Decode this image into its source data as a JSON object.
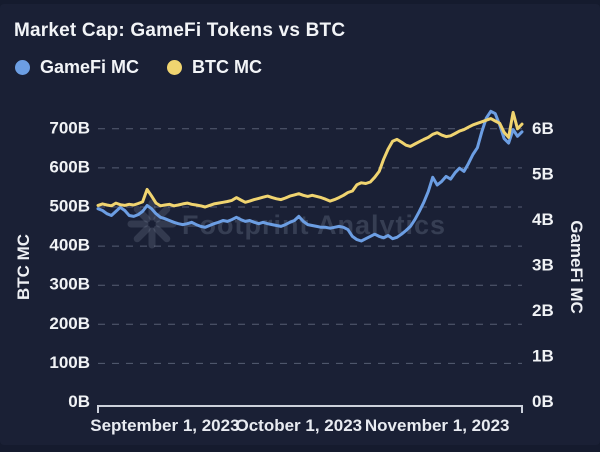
{
  "title": "Market Cap: GameFi Tokens vs BTC",
  "legend": [
    {
      "label": "GameFi MC",
      "color": "#6c9ee3"
    },
    {
      "label": "BTC MC",
      "color": "#f0d470"
    }
  ],
  "watermark": "Footprint Analytics",
  "colors": {
    "background": "#1a2035",
    "frame_edge": "#151b2e",
    "grid": "#565d73",
    "axis_line": "#ccd1db",
    "text": "#f0f2f5",
    "gamefi_blue": "#6c9ee3",
    "btc_yellow": "#f0d470"
  },
  "chart_data": {
    "type": "line",
    "title": "Market Cap: GameFi Tokens vs BTC",
    "x_axis": {
      "tick_labels": [
        {
          "label": "September 1, 2023",
          "index": 15
        },
        {
          "label": "October 1, 2023",
          "index": 45
        },
        {
          "label": "November 1, 2023",
          "index": 76
        }
      ]
    },
    "left_axis": {
      "title": "BTC MC",
      "ticks": [
        "0B",
        "100B",
        "200B",
        "300B",
        "400B",
        "500B",
        "600B",
        "700B"
      ],
      "range": [
        0,
        730
      ]
    },
    "right_axis": {
      "title": "GameFi MC",
      "ticks": [
        "0B",
        "1B",
        "2B",
        "3B",
        "4B",
        "5B",
        "6B"
      ],
      "range": [
        0,
        6.4
      ]
    },
    "grid": "horizontal-dashed",
    "legend_position": "top-left",
    "series": [
      {
        "name": "GameFi MC",
        "axis": "right",
        "color": "#6c9ee3",
        "values": [
          4.26,
          4.22,
          4.15,
          4.11,
          4.2,
          4.29,
          4.22,
          4.11,
          4.09,
          4.13,
          4.2,
          4.33,
          4.26,
          4.15,
          4.07,
          4.04,
          4.0,
          3.96,
          3.93,
          3.91,
          3.93,
          3.96,
          3.91,
          3.87,
          3.85,
          3.89,
          3.93,
          3.96,
          4.0,
          3.98,
          4.02,
          4.07,
          4.02,
          3.98,
          4.0,
          3.96,
          3.93,
          3.96,
          3.93,
          3.91,
          3.89,
          3.87,
          3.91,
          3.96,
          4.0,
          4.09,
          3.98,
          3.91,
          3.89,
          3.87,
          3.85,
          3.85,
          3.83,
          3.85,
          3.87,
          3.85,
          3.8,
          3.65,
          3.58,
          3.55,
          3.6,
          3.65,
          3.7,
          3.65,
          3.62,
          3.67,
          3.6,
          3.63,
          3.7,
          3.78,
          3.87,
          4.02,
          4.2,
          4.4,
          4.64,
          4.95,
          4.78,
          4.86,
          4.97,
          4.91,
          5.05,
          5.15,
          5.08,
          5.25,
          5.45,
          5.6,
          5.95,
          6.25,
          6.4,
          6.35,
          6.1,
          5.8,
          5.7,
          6.0,
          5.85,
          5.95
        ]
      },
      {
        "name": "BTC MC",
        "axis": "left",
        "color": "#f0d470",
        "values": [
          504,
          508,
          505,
          503,
          510,
          506,
          504,
          507,
          505,
          509,
          513,
          545,
          528,
          510,
          503,
          505,
          507,
          503,
          505,
          508,
          510,
          507,
          505,
          503,
          500,
          504,
          508,
          510,
          512,
          514,
          517,
          524,
          518,
          512,
          515,
          519,
          522,
          525,
          528,
          524,
          521,
          519,
          523,
          528,
          531,
          534,
          530,
          527,
          530,
          527,
          524,
          520,
          515,
          519,
          524,
          530,
          537,
          541,
          557,
          562,
          560,
          564,
          576,
          591,
          622,
          648,
          668,
          673,
          666,
          658,
          655,
          661,
          667,
          673,
          678,
          686,
          690,
          684,
          680,
          682,
          688,
          694,
          698,
          704,
          710,
          714,
          718,
          722,
          726,
          720,
          714,
          691,
          678,
          742,
          700,
          712
        ]
      }
    ]
  }
}
